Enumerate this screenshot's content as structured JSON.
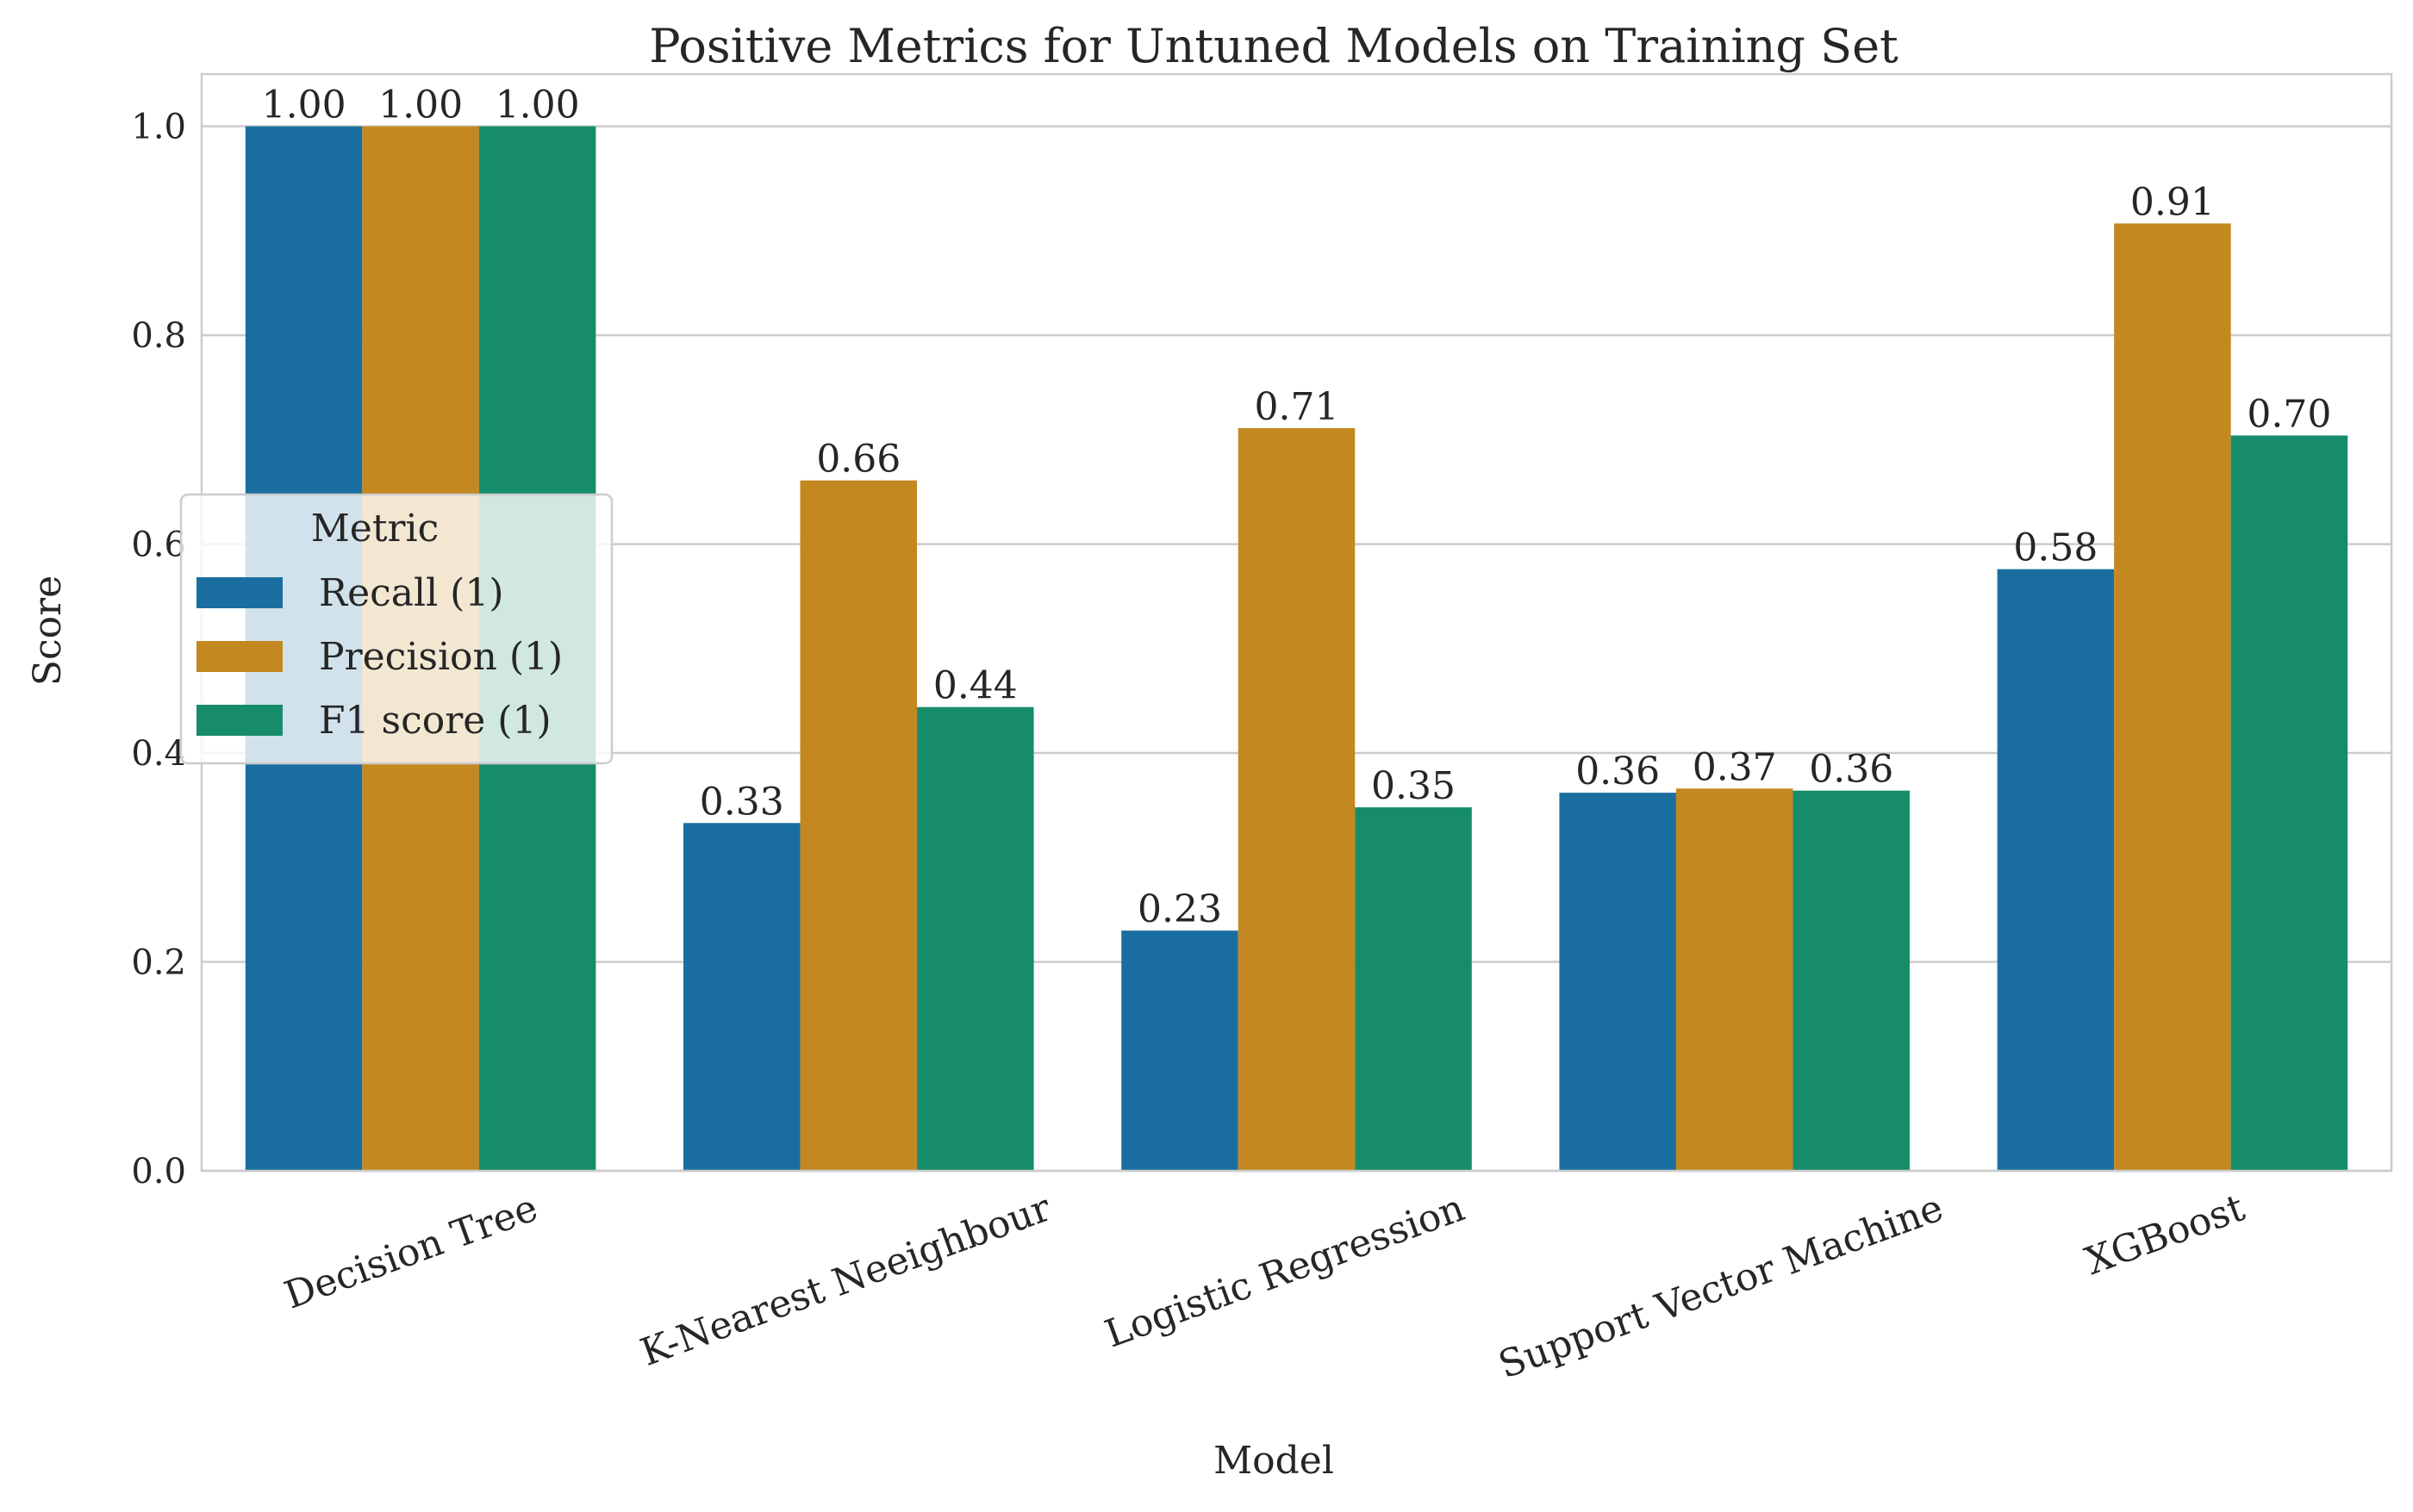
{
  "chart_data": {
    "type": "bar",
    "title": "Positive Metrics for Untuned Models on Training Set",
    "xlabel": "Model",
    "ylabel": "Score",
    "ylim": [
      0,
      1.05
    ],
    "yticks": [
      "0.0",
      "0.2",
      "0.4",
      "0.6",
      "0.8",
      "1.0"
    ],
    "categories": [
      "Decision Tree",
      "K-Nearest Neeighbour",
      "Logistic Regression",
      "Support Vector Machine",
      "XGBoost"
    ],
    "series": [
      {
        "name": "Recall (1)",
        "color": "#1a6e9f",
        "values": [
          1.0,
          0.333,
          0.23,
          0.362,
          0.576
        ],
        "labels": [
          "1.00",
          "0.33",
          "0.23",
          "0.36",
          "0.58"
        ]
      },
      {
        "name": "Precision (1)",
        "color": "#c48820",
        "values": [
          1.0,
          0.661,
          0.711,
          0.366,
          0.907
        ],
        "labels": [
          "1.00",
          "0.66",
          "0.71",
          "0.37",
          "0.91"
        ]
      },
      {
        "name": "F1 score (1)",
        "color": "#168c6b",
        "values": [
          1.0,
          0.444,
          0.348,
          0.364,
          0.704
        ],
        "labels": [
          "1.00",
          "0.44",
          "0.35",
          "0.36",
          "0.70"
        ]
      }
    ],
    "legend": {
      "title": "Metric",
      "position": "center-left"
    },
    "grid": true,
    "xtick_rotation": 20
  }
}
